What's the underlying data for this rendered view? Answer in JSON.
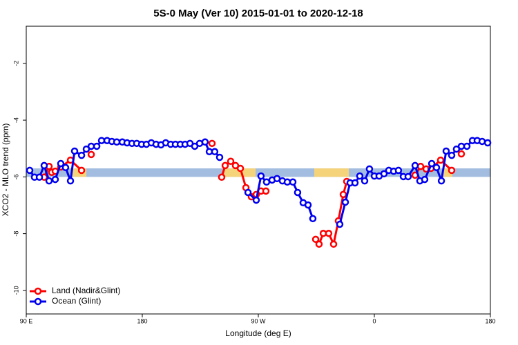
{
  "chart_data": {
    "type": "line",
    "title": "5S-0 May (Ver 10)   2015-01-01 to 2020-12-18",
    "xlabel": "Longitude (deg E)",
    "ylabel": "XCO2 - MLO trend (ppm)",
    "xlim": [
      90,
      450
    ],
    "xticks": [
      {
        "value": 90,
        "label": "90 E"
      },
      180,
      {
        "value": 270,
        "label": "90 W"
      },
      {
        "value": 360,
        "label": "0"
      },
      {
        "value": 450,
        "label": "180"
      }
    ],
    "ylim": [
      -10.83,
      -0.69
    ],
    "yticks": [
      -2,
      -4,
      -6,
      -8,
      -10
    ],
    "legend": "bottom-left",
    "band": {
      "range": [
        -6.0,
        -5.7
      ],
      "color": "#a3bde0",
      "highlight_color": "#f5d37a",
      "highlights": [
        [
          125.9,
          136.6
        ],
        [
          243.7,
          267.9
        ],
        [
          313.4,
          340.2
        ],
        [
          412.5,
          420.5
        ]
      ]
    },
    "series": [
      {
        "name": "Land (Nadir&Glint)",
        "color": "#ff0000",
        "x": [
          103.9,
          107.7,
          109.8,
          112.5,
          116.8,
          124.3,
          132.9,
          null,
          140.4,
          null,
          234.1,
          null,
          241.6,
          244.3,
          248.6,
          252.3,
          256.1,
          260.4,
          264.6,
          268.4,
          272.1,
          275.9,
          null,
          314.5,
          317.1,
          320.4,
          324.6,
          328.4,
          332.1,
          335.9,
          338.6,
          null,
          391.6,
          395.9,
          400.2,
          403.9,
          411.4,
          420.0,
          null,
          427.5
        ],
        "values": [
          -6.01,
          -5.63,
          -5.84,
          -5.8,
          -5.65,
          -5.41,
          -5.77,
          null,
          -5.21,
          null,
          -4.82,
          null,
          -6.01,
          -5.6,
          -5.45,
          -5.6,
          -5.7,
          -6.38,
          -6.7,
          -6.62,
          -6.5,
          -6.5,
          null,
          -8.2,
          -8.37,
          -7.99,
          -7.99,
          -8.37,
          -7.55,
          -6.62,
          -6.16,
          null,
          -5.94,
          -5.63,
          -5.72,
          -5.7,
          -5.41,
          -5.77,
          null,
          -5.19
        ]
      },
      {
        "name": "Ocean (Glint)",
        "color": "#0000ee",
        "x": [
          92.7,
          96.4,
          100.2,
          103.9,
          107.7,
          112.5,
          116.8,
          120.5,
          124.3,
          127.5,
          132.9,
          136.6,
          140.4,
          144.7,
          148.4,
          152.7,
          156.4,
          160.2,
          164.5,
          168.2,
          172.0,
          175.7,
          179.5,
          183.2,
          187.0,
          190.7,
          194.5,
          198.2,
          202.0,
          205.7,
          209.5,
          213.2,
          217.0,
          220.7,
          224.5,
          228.7,
          232.0,
          236.2,
          240.0,
          null,
          262.0,
          268.4,
          272.1,
          276.4,
          280.7,
          284.5,
          288.7,
          292.5,
          296.8,
          300.5,
          304.8,
          308.6,
          312.3,
          null,
          333.2,
          337.5,
          341.2,
          345.0,
          348.7,
          352.5,
          356.2,
          360.0,
          363.7,
          367.5,
          371.2,
          375.0,
          378.7,
          382.5,
          386.2,
          391.6,
          395.3,
          399.1,
          404.5,
          408.2,
          412.0,
          415.7,
          420.0,
          423.7,
          427.5,
          431.8,
          436.1,
          439.8,
          443.6,
          447.9
        ],
        "values": [
          -5.77,
          -6.01,
          -6.01,
          -5.6,
          -6.14,
          -6.09,
          -5.53,
          -5.67,
          -6.14,
          -5.09,
          -5.24,
          -5.02,
          -4.92,
          -4.92,
          -4.72,
          -4.72,
          -4.75,
          -4.77,
          -4.77,
          -4.8,
          -4.82,
          -4.82,
          -4.85,
          -4.85,
          -4.8,
          -4.85,
          -4.87,
          -4.8,
          -4.85,
          -4.85,
          -4.85,
          -4.85,
          -4.82,
          -4.92,
          -4.82,
          -4.77,
          -5.11,
          -5.11,
          -5.31,
          null,
          -6.55,
          -6.82,
          -5.97,
          -6.18,
          -6.11,
          -6.06,
          -6.14,
          -6.18,
          -6.18,
          -6.55,
          -6.91,
          -6.99,
          -7.47,
          null,
          -7.67,
          -6.89,
          -6.21,
          -6.21,
          -5.97,
          -6.14,
          -5.72,
          -5.97,
          -5.97,
          -5.89,
          -5.77,
          -5.8,
          -5.77,
          -5.99,
          -5.99,
          -5.6,
          -6.14,
          -6.09,
          -5.53,
          -5.67,
          -6.14,
          -5.09,
          -5.24,
          -5.02,
          -4.92,
          -4.92,
          -4.72,
          -4.72,
          -4.75,
          -4.8
        ]
      }
    ]
  }
}
